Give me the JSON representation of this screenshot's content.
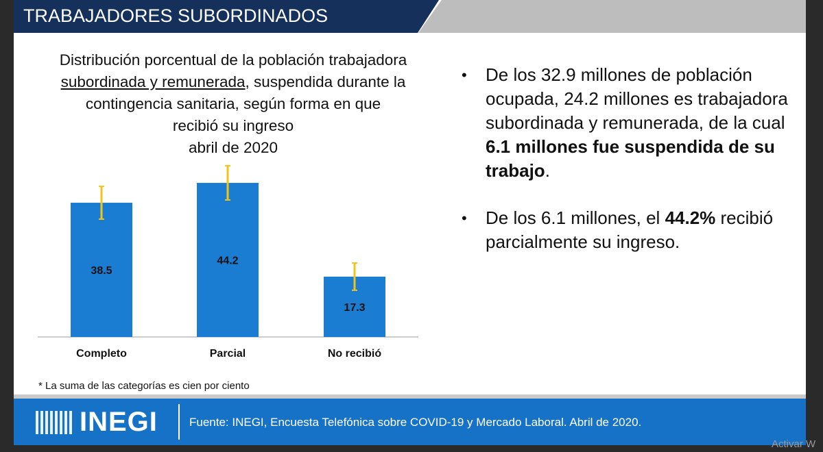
{
  "header": "TRABAJADORES SUBORDINADOS",
  "chart_data": {
    "type": "bar",
    "title": [
      "Distribución porcentual de la población trabajadora",
      "subordinada y remunerada",
      ", suspendida durante la",
      "contingencia sanitaria, según forma en que",
      "recibió su ingreso"
    ],
    "subtitle": "abril de 2020",
    "categories": [
      "Completo",
      "Parcial",
      "No recibió"
    ],
    "values": [
      38.5,
      44.2,
      17.3
    ],
    "errors": [
      4.7,
      4.9,
      3.9
    ],
    "color": "#1b7dd2",
    "error_color": "#f2c318"
  },
  "footnote": "* La suma de las categorías es cien por ciento",
  "bullets": [
    [
      {
        "text": "De los 32.9 millones de población ocupada, 24.2 millones es trabajadora subordinada y remunerada, de la cual ",
        "bold": false
      },
      {
        "text": "6.1 millones fue suspendida de su trabajo",
        "bold": true
      },
      {
        "text": ".",
        "bold": false
      }
    ],
    [
      {
        "text": "De los 6.1 millones, el ",
        "bold": false
      },
      {
        "text": "44.2%",
        "bold": true
      },
      {
        "text": " recibió parcialmente su ingreso.",
        "bold": false
      }
    ]
  ],
  "footer": {
    "logo": "INEGI",
    "source": "Fuente: INEGI, Encuesta Telefónica sobre COVID-19 y Mercado Laboral. Abril de 2020."
  },
  "watermark": "Activar W"
}
